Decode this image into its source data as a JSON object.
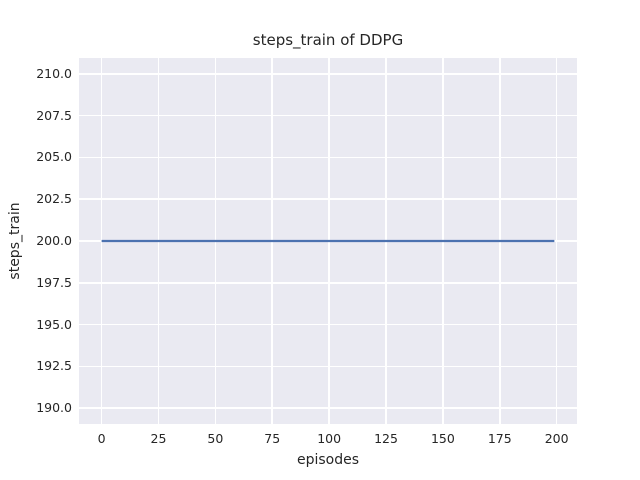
{
  "chart_data": {
    "type": "line",
    "title": "steps_train of DDPG",
    "xlabel": "episodes",
    "ylabel": "steps_train",
    "xlim": [
      -9.95,
      208.95
    ],
    "ylim": [
      189.05,
      210.95
    ],
    "x_ticks": [
      0,
      25,
      50,
      75,
      100,
      125,
      150,
      175,
      200
    ],
    "x_tick_labels": [
      "0",
      "25",
      "50",
      "75",
      "100",
      "125",
      "150",
      "175",
      "200"
    ],
    "y_ticks": [
      190.0,
      192.5,
      195.0,
      197.5,
      200.0,
      202.5,
      205.0,
      207.5,
      210.0
    ],
    "y_tick_labels": [
      "190.0",
      "192.5",
      "195.0",
      "197.5",
      "200.0",
      "202.5",
      "205.0",
      "207.5",
      "210.0"
    ],
    "grid": true,
    "legend": false,
    "series": [
      {
        "name": "steps_train",
        "color": "#4c72b0",
        "x": [
          0,
          199
        ],
        "y": [
          200,
          200
        ]
      }
    ],
    "colors": {
      "figure_background": "#ffffff",
      "axes_background": "#eaeaf2",
      "grid": "#ffffff",
      "text": "#262626",
      "line": "#4c72b0"
    }
  }
}
